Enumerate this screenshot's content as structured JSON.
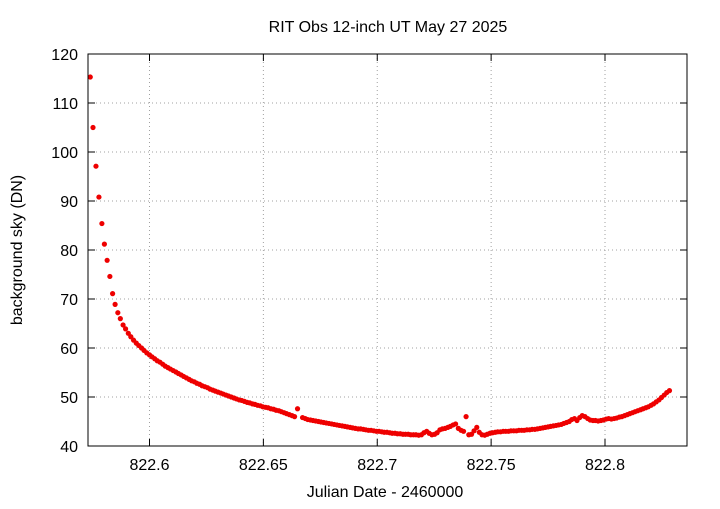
{
  "chart_data": {
    "type": "scatter",
    "title": "RIT Obs 12-inch UT May 27 2025",
    "xlabel": "Julian Date - 2460000",
    "ylabel": "background sky (DN)",
    "xlim": [
      822.573,
      822.836
    ],
    "ylim": [
      40,
      120
    ],
    "xticks": [
      822.6,
      822.65,
      822.7,
      822.75,
      822.8
    ],
    "xtick_labels": [
      "822.6",
      "822.65",
      "822.7",
      "822.75",
      "822.8"
    ],
    "yticks": [
      40,
      50,
      60,
      70,
      80,
      90,
      100,
      110,
      120
    ],
    "ytick_labels": [
      "40",
      "50",
      "60",
      "70",
      "80",
      "90",
      "100",
      "110",
      "120"
    ],
    "grid": true,
    "marker_color": "#ee0000",
    "series": [
      {
        "points": [
          [
            822.574,
            115.3
          ],
          [
            822.5752,
            105.0
          ],
          [
            822.5765,
            97.1
          ],
          [
            822.5778,
            90.8
          ],
          [
            822.5791,
            85.4
          ],
          [
            822.5802,
            81.2
          ],
          [
            822.5814,
            77.9
          ],
          [
            822.5826,
            74.6
          ],
          [
            822.5838,
            71.1
          ],
          [
            822.5849,
            68.9
          ],
          [
            822.5861,
            67.2
          ],
          [
            822.5872,
            66.0
          ],
          [
            822.5884,
            64.7
          ],
          [
            822.5895,
            63.9
          ],
          [
            822.5907,
            63.0
          ],
          [
            822.5918,
            62.3
          ],
          [
            822.593,
            61.6
          ],
          [
            822.5942,
            61.0
          ],
          [
            822.5953,
            60.5
          ],
          [
            822.5965,
            60.0
          ],
          [
            822.5976,
            59.5
          ],
          [
            822.5988,
            59.0
          ],
          [
            822.6,
            58.6
          ],
          [
            822.6011,
            58.2
          ],
          [
            822.6023,
            57.8
          ],
          [
            822.6034,
            57.4
          ],
          [
            822.6046,
            57.1
          ],
          [
            822.6058,
            56.7
          ],
          [
            822.6069,
            56.3
          ],
          [
            822.6081,
            56.0
          ],
          [
            822.6092,
            55.7
          ],
          [
            822.6104,
            55.4
          ],
          [
            822.6116,
            55.1
          ],
          [
            822.6127,
            54.8
          ],
          [
            822.6139,
            54.5
          ],
          [
            822.615,
            54.2
          ],
          [
            822.6162,
            53.9
          ],
          [
            822.6174,
            53.6
          ],
          [
            822.6185,
            53.3
          ],
          [
            822.6197,
            53.1
          ],
          [
            822.6208,
            52.8
          ],
          [
            822.622,
            52.6
          ],
          [
            822.6231,
            52.3
          ],
          [
            822.6243,
            52.1
          ],
          [
            822.6255,
            51.9
          ],
          [
            822.6266,
            51.6
          ],
          [
            822.6278,
            51.4
          ],
          [
            822.6289,
            51.2
          ],
          [
            822.6301,
            51.0
          ],
          [
            822.6313,
            50.8
          ],
          [
            822.6324,
            50.6
          ],
          [
            822.6336,
            50.4
          ],
          [
            822.6347,
            50.2
          ],
          [
            822.6359,
            50.0
          ],
          [
            822.6371,
            49.8
          ],
          [
            822.6382,
            49.6
          ],
          [
            822.6394,
            49.4
          ],
          [
            822.6405,
            49.3
          ],
          [
            822.6417,
            49.1
          ],
          [
            822.6429,
            48.9
          ],
          [
            822.644,
            48.8
          ],
          [
            822.6452,
            48.6
          ],
          [
            822.6463,
            48.5
          ],
          [
            822.6475,
            48.3
          ],
          [
            822.6487,
            48.2
          ],
          [
            822.6498,
            48.0
          ],
          [
            822.651,
            47.9
          ],
          [
            822.6521,
            47.8
          ],
          [
            822.6533,
            47.6
          ],
          [
            822.6545,
            47.5
          ],
          [
            822.6556,
            47.3
          ],
          [
            822.6568,
            47.2
          ],
          [
            822.6579,
            47.0
          ],
          [
            822.6591,
            46.8
          ],
          [
            822.6602,
            46.6
          ],
          [
            822.6614,
            46.4
          ],
          [
            822.6626,
            46.2
          ],
          [
            822.6637,
            46.0
          ],
          [
            822.665,
            47.6
          ],
          [
            822.6672,
            45.8
          ],
          [
            822.6684,
            45.6
          ],
          [
            822.6695,
            45.4
          ],
          [
            822.6707,
            45.3
          ],
          [
            822.6718,
            45.2
          ],
          [
            822.673,
            45.1
          ],
          [
            822.6742,
            45.0
          ],
          [
            822.6753,
            44.9
          ],
          [
            822.6765,
            44.8
          ],
          [
            822.6776,
            44.7
          ],
          [
            822.6788,
            44.6
          ],
          [
            822.68,
            44.5
          ],
          [
            822.6811,
            44.4
          ],
          [
            822.6823,
            44.3
          ],
          [
            822.6834,
            44.2
          ],
          [
            822.6846,
            44.1
          ],
          [
            822.6858,
            44.0
          ],
          [
            822.6869,
            43.9
          ],
          [
            822.6881,
            43.8
          ],
          [
            822.6892,
            43.7
          ],
          [
            822.6904,
            43.6
          ],
          [
            822.6916,
            43.5
          ],
          [
            822.6927,
            43.5
          ],
          [
            822.6939,
            43.4
          ],
          [
            822.695,
            43.3
          ],
          [
            822.6962,
            43.2
          ],
          [
            822.6973,
            43.2
          ],
          [
            822.6985,
            43.1
          ],
          [
            822.6997,
            43.0
          ],
          [
            822.7008,
            43.0
          ],
          [
            822.702,
            42.9
          ],
          [
            822.7031,
            42.8
          ],
          [
            822.7043,
            42.8
          ],
          [
            822.7055,
            42.7
          ],
          [
            822.7066,
            42.6
          ],
          [
            822.7078,
            42.6
          ],
          [
            822.7089,
            42.5
          ],
          [
            822.7101,
            42.5
          ],
          [
            822.7113,
            42.4
          ],
          [
            822.7124,
            42.4
          ],
          [
            822.7136,
            42.4
          ],
          [
            822.7147,
            42.3
          ],
          [
            822.7159,
            42.3
          ],
          [
            822.717,
            42.3
          ],
          [
            822.7182,
            42.2
          ],
          [
            822.7194,
            42.3
          ],
          [
            822.7205,
            42.7
          ],
          [
            822.7217,
            43.0
          ],
          [
            822.7228,
            42.6
          ],
          [
            822.724,
            42.3
          ],
          [
            822.7252,
            42.4
          ],
          [
            822.7263,
            42.7
          ],
          [
            822.7275,
            43.3
          ],
          [
            822.7286,
            43.5
          ],
          [
            822.7298,
            43.6
          ],
          [
            822.731,
            43.8
          ],
          [
            822.7321,
            44.0
          ],
          [
            822.7333,
            44.3
          ],
          [
            822.7344,
            44.5
          ],
          [
            822.7356,
            43.6
          ],
          [
            822.7368,
            43.2
          ],
          [
            822.7379,
            43.0
          ],
          [
            822.739,
            46.0
          ],
          [
            822.7402,
            42.3
          ],
          [
            822.7414,
            42.4
          ],
          [
            822.7425,
            43.1
          ],
          [
            822.7437,
            43.8
          ],
          [
            822.7448,
            42.8
          ],
          [
            822.746,
            42.3
          ],
          [
            822.7472,
            42.2
          ],
          [
            822.7483,
            42.4
          ],
          [
            822.7495,
            42.6
          ],
          [
            822.7506,
            42.7
          ],
          [
            822.7518,
            42.8
          ],
          [
            822.7529,
            42.9
          ],
          [
            822.7541,
            42.9
          ],
          [
            822.7553,
            43.0
          ],
          [
            822.7564,
            43.0
          ],
          [
            822.7576,
            43.0
          ],
          [
            822.7587,
            43.1
          ],
          [
            822.7599,
            43.1
          ],
          [
            822.7611,
            43.1
          ],
          [
            822.7622,
            43.2
          ],
          [
            822.7634,
            43.2
          ],
          [
            822.7645,
            43.2
          ],
          [
            822.7657,
            43.3
          ],
          [
            822.7669,
            43.3
          ],
          [
            822.768,
            43.4
          ],
          [
            822.7692,
            43.4
          ],
          [
            822.7703,
            43.5
          ],
          [
            822.7715,
            43.6
          ],
          [
            822.7727,
            43.7
          ],
          [
            822.7738,
            43.8
          ],
          [
            822.775,
            43.9
          ],
          [
            822.7761,
            44.0
          ],
          [
            822.7773,
            44.1
          ],
          [
            822.7785,
            44.2
          ],
          [
            822.7796,
            44.3
          ],
          [
            822.7808,
            44.4
          ],
          [
            822.7819,
            44.6
          ],
          [
            822.7831,
            44.8
          ],
          [
            822.7843,
            45.0
          ],
          [
            822.7854,
            45.4
          ],
          [
            822.7866,
            45.6
          ],
          [
            822.7877,
            45.2
          ],
          [
            822.7889,
            45.8
          ],
          [
            822.79,
            46.2
          ],
          [
            822.7912,
            46.0
          ],
          [
            822.7924,
            45.6
          ],
          [
            822.7935,
            45.3
          ],
          [
            822.7947,
            45.2
          ],
          [
            822.7958,
            45.2
          ],
          [
            822.797,
            45.1
          ],
          [
            822.7982,
            45.2
          ],
          [
            822.7993,
            45.3
          ],
          [
            822.8005,
            45.5
          ],
          [
            822.8016,
            45.6
          ],
          [
            822.8028,
            45.5
          ],
          [
            822.804,
            45.6
          ],
          [
            822.8051,
            45.7
          ],
          [
            822.8063,
            45.9
          ],
          [
            822.8074,
            46.0
          ],
          [
            822.8086,
            46.2
          ],
          [
            822.8098,
            46.4
          ],
          [
            822.8109,
            46.6
          ],
          [
            822.8121,
            46.8
          ],
          [
            822.8132,
            47.0
          ],
          [
            822.8144,
            47.2
          ],
          [
            822.8156,
            47.4
          ],
          [
            822.8167,
            47.6
          ],
          [
            822.8179,
            47.8
          ],
          [
            822.819,
            48.0
          ],
          [
            822.8202,
            48.3
          ],
          [
            822.8213,
            48.6
          ],
          [
            822.8225,
            49.0
          ],
          [
            822.8237,
            49.4
          ],
          [
            822.8248,
            49.9
          ],
          [
            822.826,
            50.4
          ],
          [
            822.8271,
            50.9
          ],
          [
            822.8283,
            51.3
          ]
        ]
      }
    ]
  }
}
